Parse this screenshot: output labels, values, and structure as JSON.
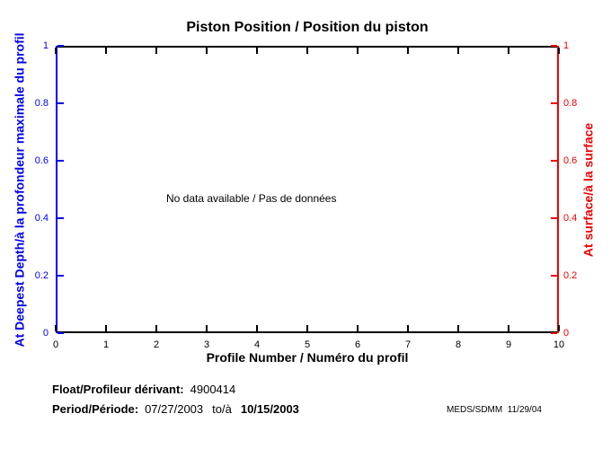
{
  "chart_data": {
    "type": "line",
    "title": "Piston Position / Position du piston",
    "xlabel": "Profile Number / Numéro du profil",
    "ylabel_left": "At Deepest Depth/à la profondeur maximale du profil",
    "ylabel_right": "At surface/à la surface",
    "xlim": [
      0,
      10
    ],
    "ylim_left": [
      0,
      1
    ],
    "ylim_right": [
      0,
      1
    ],
    "x_ticks": [
      0,
      1,
      2,
      3,
      4,
      5,
      6,
      7,
      8,
      9,
      10
    ],
    "y_ticks_left": [
      0,
      0.2,
      0.4,
      0.6,
      0.8,
      1
    ],
    "y_ticks_right": [
      0,
      0.2,
      0.4,
      0.6,
      0.8,
      1
    ],
    "series": [],
    "grid": false,
    "legend": null,
    "annotation": "No data available / Pas de données",
    "colors": {
      "left_axis": "#0000EE",
      "right_axis": "#EE0000",
      "frame": "#000000",
      "background": "#FFFFFF"
    }
  },
  "footer": {
    "float_label": "Float/Profileur dérivant:",
    "float_value": "4900414",
    "period_label": "Period/Période:",
    "period_start": "07/27/2003",
    "period_to": "to/à",
    "period_end": "10/15/2003",
    "credit": "MEDS/SDMM  11/29/04"
  }
}
